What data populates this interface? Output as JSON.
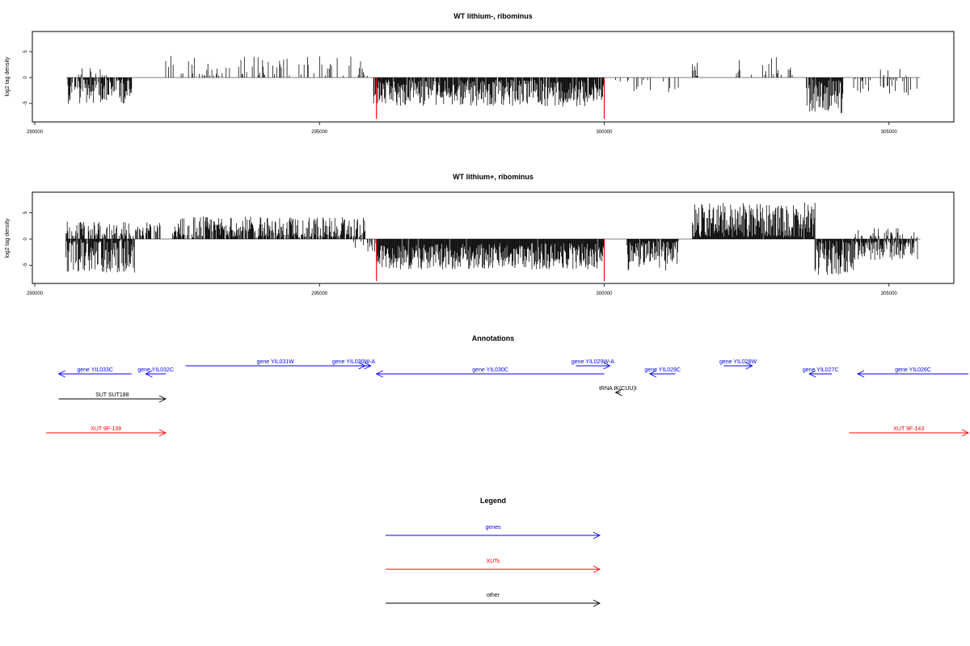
{
  "colors": {
    "genes": "#0000ff",
    "xuts": "#ff0000",
    "other": "#000000",
    "highlight": "#ff0000",
    "bars": "#000000"
  },
  "chart_data": [
    {
      "type": "bar",
      "title": "WT lithium-, ribominus",
      "ylabel": "log2 tag density",
      "xlim": [
        290000,
        306000
      ],
      "ylim": [
        -8.5,
        9
      ],
      "x_ticks": [
        "290000",
        "295000",
        "300000",
        "305000"
      ],
      "y_ticks": [
        "5",
        "0",
        "-5"
      ],
      "grid": false,
      "regions": [
        {
          "start": 290580,
          "end": 291700,
          "sign": -1,
          "mean": 2.5,
          "amp": 2.6,
          "density": 0.75
        },
        {
          "start": 290700,
          "end": 291300,
          "sign": 1,
          "mean": 0.8,
          "amp": 1.2,
          "density": 0.2
        },
        {
          "start": 292300,
          "end": 295900,
          "sign": 1,
          "mean": 1.6,
          "amp": 2.6,
          "density": 0.22
        },
        {
          "start": 295950,
          "end": 300000,
          "sign": -1,
          "mean": 3.0,
          "amp": 2.6,
          "density": 0.9
        },
        {
          "start": 300100,
          "end": 301300,
          "sign": -1,
          "mean": 1.5,
          "amp": 1.5,
          "density": 0.12
        },
        {
          "start": 301550,
          "end": 301650,
          "sign": 1,
          "mean": 1.5,
          "amp": 1.5,
          "density": 0.5
        },
        {
          "start": 302300,
          "end": 303300,
          "sign": 1,
          "mean": 1.5,
          "amp": 2.5,
          "density": 0.12
        },
        {
          "start": 303550,
          "end": 304200,
          "sign": -1,
          "mean": 3.5,
          "amp": 3.5,
          "density": 0.9
        },
        {
          "start": 304300,
          "end": 305500,
          "sign": -1,
          "mean": 1.5,
          "amp": 2.0,
          "density": 0.2
        },
        {
          "start": 304800,
          "end": 305400,
          "sign": 1,
          "mean": 1.5,
          "amp": 2.0,
          "density": 0.06
        }
      ],
      "highlights": [
        {
          "x": 296000,
          "y": -8
        },
        {
          "x": 300000,
          "y": -8
        }
      ]
    },
    {
      "type": "bar",
      "title": "WT lithium+, ribominus",
      "ylabel": "log2 tag density",
      "xlim": [
        290000,
        306000
      ],
      "ylim": [
        -8.5,
        9
      ],
      "x_ticks": [
        "290000",
        "295000",
        "300000",
        "305000"
      ],
      "y_ticks": [
        "5",
        "0",
        "-5"
      ],
      "grid": false,
      "regions": [
        {
          "start": 290550,
          "end": 291750,
          "sign": -1,
          "mean": 3.0,
          "amp": 3.5,
          "density": 0.95
        },
        {
          "start": 290550,
          "end": 292200,
          "sign": 1,
          "mean": 1.5,
          "amp": 1.8,
          "density": 0.55
        },
        {
          "start": 292400,
          "end": 295800,
          "sign": 1,
          "mean": 2.0,
          "amp": 2.3,
          "density": 0.75
        },
        {
          "start": 295600,
          "end": 296000,
          "sign": -1,
          "mean": 1.5,
          "amp": 1.0,
          "density": 0.4
        },
        {
          "start": 296000,
          "end": 300000,
          "sign": -1,
          "mean": 3.3,
          "amp": 2.5,
          "density": 0.98
        },
        {
          "start": 300400,
          "end": 301300,
          "sign": -1,
          "mean": 3.0,
          "amp": 3.0,
          "density": 0.95
        },
        {
          "start": 301550,
          "end": 303700,
          "sign": 1,
          "mean": 3.2,
          "amp": 3.8,
          "density": 0.98
        },
        {
          "start": 303700,
          "end": 304400,
          "sign": -1,
          "mean": 3.5,
          "amp": 3.5,
          "density": 0.95
        },
        {
          "start": 304400,
          "end": 305500,
          "sign": -1,
          "mean": 1.8,
          "amp": 2.2,
          "density": 0.75
        },
        {
          "start": 304400,
          "end": 305500,
          "sign": 1,
          "mean": 1.0,
          "amp": 1.2,
          "density": 0.3
        }
      ],
      "highlights": [
        {
          "x": 296000,
          "y": -8
        },
        {
          "x": 300000,
          "y": -8
        }
      ]
    }
  ],
  "annotations": {
    "title": "Annotations",
    "features": [
      {
        "label": "gene YIL033C",
        "kind": "genes",
        "start": 290420,
        "end": 291700,
        "strand": "-",
        "row": 1
      },
      {
        "label": "gene YIL032C",
        "kind": "genes",
        "start": 291950,
        "end": 292300,
        "strand": "-",
        "row": 1
      },
      {
        "label": "gene YIL031W",
        "kind": "genes",
        "start": 292650,
        "end": 295800,
        "strand": "+",
        "row": 0
      },
      {
        "label": "gene YIL030W-A",
        "kind": "genes",
        "start": 295300,
        "end": 295900,
        "strand": "+",
        "row": 0
      },
      {
        "label": "gene YIL030C",
        "kind": "genes",
        "start": 296000,
        "end": 300000,
        "strand": "-",
        "row": 1
      },
      {
        "label": "gene YIL029W-A",
        "kind": "genes",
        "start": 299500,
        "end": 300100,
        "strand": "+",
        "row": 0
      },
      {
        "label": "gene YIL029C",
        "kind": "genes",
        "start": 300800,
        "end": 301250,
        "strand": "-",
        "row": 1
      },
      {
        "label": "gene YIL028W",
        "kind": "genes",
        "start": 302100,
        "end": 302600,
        "strand": "+",
        "row": 0
      },
      {
        "label": "gene YIL027C",
        "kind": "genes",
        "start": 303600,
        "end": 304000,
        "strand": "-",
        "row": 1
      },
      {
        "label": "gene YIL026C",
        "kind": "genes",
        "start": 304450,
        "end": 307200,
        "strand": "-",
        "row": 1
      },
      {
        "label": "tRNA tK(CUU)I",
        "kind": "other",
        "start": 300200,
        "end": 300280,
        "strand": "-",
        "row": 2
      },
      {
        "label": "SUT SUT188",
        "kind": "other",
        "start": 290420,
        "end": 292300,
        "strand": "+",
        "row": 3
      },
      {
        "label": "XUT 9F-139",
        "kind": "xuts",
        "start": 290200,
        "end": 292300,
        "strand": "+",
        "row": 4
      },
      {
        "label": "XUT 9F-143",
        "kind": "xuts",
        "start": 304300,
        "end": 307500,
        "strand": "+",
        "row": 4
      }
    ]
  },
  "legend": {
    "title": "Legend",
    "items": [
      {
        "label": "genes",
        "kind": "genes"
      },
      {
        "label": "XUTs",
        "kind": "xuts"
      },
      {
        "label": "other",
        "kind": "other"
      }
    ]
  }
}
